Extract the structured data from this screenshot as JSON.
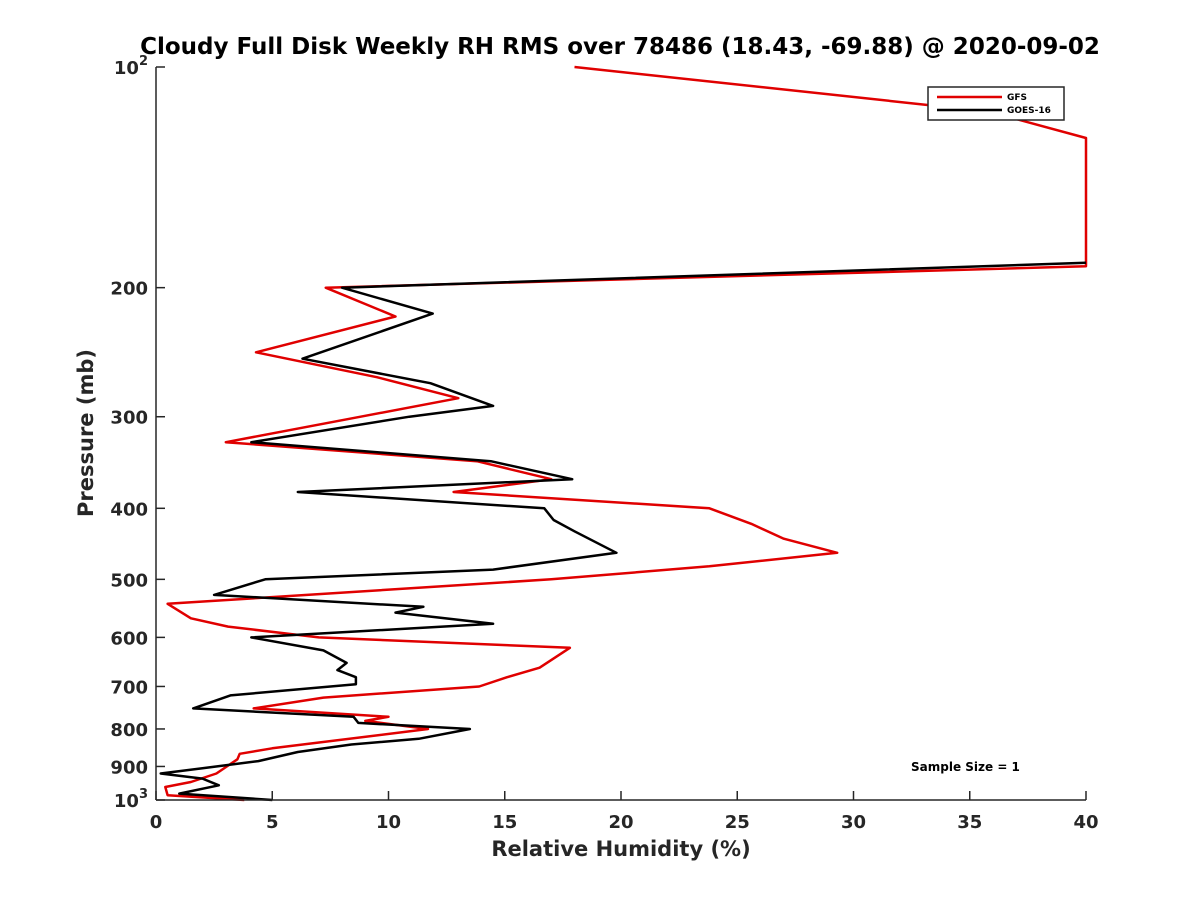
{
  "chart_data": {
    "type": "line",
    "title": "Cloudy Full Disk Weekly RH RMS over 78486 (18.43, -69.88) @ 2020-09-02",
    "xlabel": "Relative Humidity (%)",
    "ylabel": "Pressure (mb)",
    "xlim": [
      0,
      40
    ],
    "ylim": [
      100,
      1000
    ],
    "y_scale": "log",
    "y_reversed": true,
    "x_ticks": [
      {
        "value": 0,
        "label": "0"
      },
      {
        "value": 5,
        "label": "5"
      },
      {
        "value": 10,
        "label": "10"
      },
      {
        "value": 15,
        "label": "15"
      },
      {
        "value": 20,
        "label": "20"
      },
      {
        "value": 25,
        "label": "25"
      },
      {
        "value": 30,
        "label": "30"
      },
      {
        "value": 35,
        "label": "35"
      },
      {
        "value": 40,
        "label": "40"
      }
    ],
    "y_ticks": [
      {
        "value": 100,
        "label": "10",
        "exp": "2"
      },
      {
        "value": 200,
        "label": "200"
      },
      {
        "value": 300,
        "label": "300"
      },
      {
        "value": 400,
        "label": "400"
      },
      {
        "value": 500,
        "label": "500"
      },
      {
        "value": 600,
        "label": "600"
      },
      {
        "value": 700,
        "label": "700"
      },
      {
        "value": 800,
        "label": "800"
      },
      {
        "value": 900,
        "label": "900"
      },
      {
        "value": 1000,
        "label": "10",
        "exp": "3"
      }
    ],
    "grid": false,
    "legend_position": "top-right",
    "annotation": "Sample Size = 1",
    "series": [
      {
        "name": "GFS",
        "color": "#e00000",
        "points": [
          [
            18.0,
            100
          ],
          [
            35.8,
            115
          ],
          [
            40.0,
            125
          ],
          [
            40.0,
            187
          ],
          [
            7.3,
            200
          ],
          [
            10.3,
            219
          ],
          [
            4.3,
            245
          ],
          [
            9.5,
            265
          ],
          [
            13.0,
            283
          ],
          [
            8.8,
            300
          ],
          [
            3.0,
            325
          ],
          [
            13.8,
            345
          ],
          [
            17.0,
            365
          ],
          [
            12.8,
            380
          ],
          [
            23.8,
            400
          ],
          [
            25.6,
            420
          ],
          [
            27.0,
            440
          ],
          [
            29.3,
            460
          ],
          [
            23.8,
            480
          ],
          [
            17.0,
            500
          ],
          [
            0.5,
            540
          ],
          [
            1.5,
            565
          ],
          [
            3.1,
            580
          ],
          [
            7.0,
            600
          ],
          [
            17.8,
            620
          ],
          [
            16.5,
            660
          ],
          [
            15.1,
            680
          ],
          [
            13.9,
            700
          ],
          [
            7.2,
            725
          ],
          [
            4.2,
            750
          ],
          [
            10.0,
            770
          ],
          [
            9.0,
            780
          ],
          [
            11.7,
            800
          ],
          [
            5.0,
            850
          ],
          [
            3.6,
            865
          ],
          [
            3.5,
            880
          ],
          [
            2.6,
            920
          ],
          [
            1.5,
            945
          ],
          [
            0.4,
            960
          ],
          [
            0.5,
            985
          ],
          [
            3.8,
            1000
          ]
        ]
      },
      {
        "name": "GOES-16",
        "color": "#000000",
        "points": [
          [
            40.0,
            185
          ],
          [
            8.0,
            200
          ],
          [
            11.9,
            217
          ],
          [
            6.3,
            250
          ],
          [
            11.8,
            270
          ],
          [
            14.5,
            290
          ],
          [
            10.9,
            300
          ],
          [
            4.1,
            325
          ],
          [
            14.4,
            345
          ],
          [
            17.9,
            365
          ],
          [
            6.1,
            380
          ],
          [
            16.7,
            400
          ],
          [
            17.1,
            415
          ],
          [
            18.0,
            430
          ],
          [
            19.8,
            460
          ],
          [
            14.5,
            485
          ],
          [
            4.7,
            500
          ],
          [
            2.5,
            525
          ],
          [
            11.5,
            545
          ],
          [
            10.3,
            555
          ],
          [
            14.5,
            575
          ],
          [
            4.1,
            600
          ],
          [
            7.2,
            625
          ],
          [
            8.2,
            650
          ],
          [
            7.8,
            665
          ],
          [
            8.6,
            680
          ],
          [
            8.6,
            695
          ],
          [
            3.2,
            720
          ],
          [
            1.6,
            750
          ],
          [
            8.5,
            770
          ],
          [
            8.7,
            785
          ],
          [
            13.5,
            800
          ],
          [
            11.3,
            825
          ],
          [
            8.4,
            840
          ],
          [
            6.1,
            860
          ],
          [
            4.4,
            885
          ],
          [
            2.0,
            905
          ],
          [
            0.2,
            920
          ],
          [
            2.0,
            935
          ],
          [
            2.7,
            955
          ],
          [
            1.0,
            980
          ],
          [
            5.0,
            1000
          ]
        ]
      }
    ]
  }
}
